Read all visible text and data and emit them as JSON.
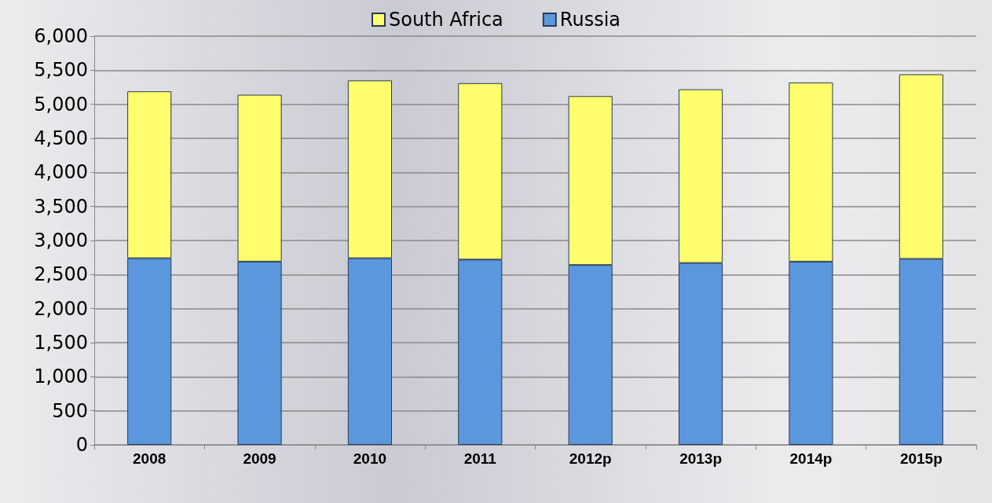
{
  "chart_data": {
    "type": "bar",
    "stacked": true,
    "categories": [
      "2008",
      "2009",
      "2010",
      "2011",
      "2012p",
      "2013p",
      "2014p",
      "2015p"
    ],
    "series": [
      {
        "name": "Russia",
        "color": "#5b97dd",
        "values": [
          2740,
          2690,
          2740,
          2720,
          2640,
          2670,
          2690,
          2730
        ]
      },
      {
        "name": "South Africa",
        "color": "#ffff6e",
        "values": [
          2450,
          2450,
          2610,
          2590,
          2480,
          2550,
          2630,
          2710
        ]
      }
    ],
    "ylim": [
      0,
      6000
    ],
    "yticks": [
      0,
      500,
      {
        "value": 1000,
        "label": "1,000"
      },
      {
        "value": 1500,
        "label": "1,500"
      },
      {
        "value": 2000,
        "label": "2,000"
      },
      {
        "value": 2500,
        "label": "2,500"
      },
      {
        "value": 3000,
        "label": "3,000"
      },
      {
        "value": 3500,
        "label": "3,500"
      },
      {
        "value": 4000,
        "label": "4,000"
      },
      {
        "value": 4500,
        "label": "4,500"
      },
      {
        "value": 5000,
        "label": "5,000"
      },
      {
        "value": 5500,
        "label": "5,500"
      },
      {
        "value": 6000,
        "label": "6,000"
      }
    ],
    "grid": "y",
    "legend": "top"
  }
}
